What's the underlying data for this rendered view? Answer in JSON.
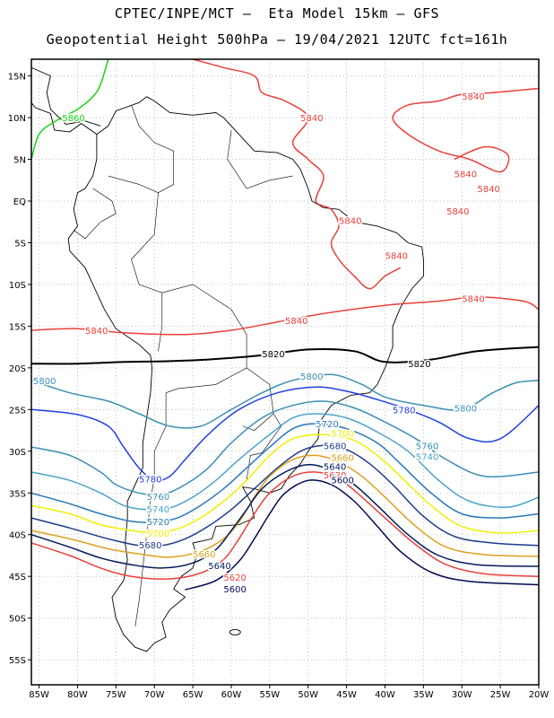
{
  "header": {
    "line1": "CPTEC/INPE/MCT –  Eta Model 15km – GFS",
    "line2": "Geopotential Height 500hPa – 19/04/2021 12UTC fct=161h"
  },
  "axes": {
    "lat_labels": [
      "15N",
      "10N",
      "5N",
      "EQ",
      "5S",
      "10S",
      "15S",
      "20S",
      "25S",
      "30S",
      "35S",
      "40S",
      "45S",
      "50S",
      "55S"
    ],
    "lon_labels": [
      "85W",
      "80W",
      "75W",
      "70W",
      "65W",
      "60W",
      "55W",
      "50W",
      "45W",
      "40W",
      "35W",
      "30W",
      "25W",
      "20W"
    ],
    "lat_range": [
      -58,
      17
    ],
    "lon_range": [
      -86,
      -20
    ]
  },
  "contours": [
    {
      "value": 5860,
      "label": "5860",
      "color": "#19d219",
      "points": [
        [
          -86,
          5
        ],
        [
          -85,
          8
        ],
        [
          -83,
          9.5
        ],
        [
          -80,
          11
        ],
        [
          -78,
          12.5
        ],
        [
          -77,
          14
        ],
        [
          -76,
          17
        ]
      ],
      "labels_at": [
        [
          -82,
          10
        ]
      ]
    },
    {
      "value": 5840,
      "label": "5840",
      "color": "#e8403a",
      "points": [
        [
          -86,
          -15.5
        ],
        [
          -80,
          -15.3
        ],
        [
          -74,
          -15.8
        ],
        [
          -66,
          -16
        ],
        [
          -60,
          -15.5
        ],
        [
          -54,
          -14.5
        ],
        [
          -48,
          -13.5
        ],
        [
          -40,
          -12.5
        ],
        [
          -33,
          -12
        ],
        [
          -28,
          -11.5
        ],
        [
          -22,
          -12
        ],
        [
          -20,
          -13
        ]
      ],
      "labels_at": [
        [
          -79,
          -15.5
        ],
        [
          -53,
          -14.3
        ],
        [
          -30,
          -11.7
        ]
      ]
    },
    {
      "value": 5840,
      "label": "5840",
      "color": "#e8403a",
      "points": [
        [
          -65,
          17
        ],
        [
          -61,
          16
        ],
        [
          -57,
          15
        ],
        [
          -56,
          13
        ],
        [
          -53,
          12
        ],
        [
          -50,
          10
        ],
        [
          -52,
          7
        ],
        [
          -50,
          5
        ],
        [
          -48,
          3
        ],
        [
          -49,
          0
        ],
        [
          -47,
          -1
        ],
        [
          -46,
          -3
        ],
        [
          -47,
          -5
        ],
        [
          -46,
          -7
        ],
        [
          -44,
          -9
        ],
        [
          -42,
          -10.5
        ],
        [
          -40,
          -9
        ],
        [
          -38,
          -8
        ]
      ],
      "labels_at": [
        [
          -51,
          10
        ],
        [
          -46,
          -2.3
        ],
        [
          -40,
          -6.5
        ]
      ]
    },
    {
      "value": 5840,
      "label": "5840",
      "color": "#e8403a",
      "points": [
        [
          -20,
          13.5
        ],
        [
          -26,
          13
        ],
        [
          -30,
          12.8
        ],
        [
          -33,
          12
        ],
        [
          -37,
          11.5
        ],
        [
          -39,
          10
        ],
        [
          -37,
          8
        ],
        [
          -33,
          6
        ],
        [
          -29,
          5
        ],
        [
          -25,
          3.5
        ],
        [
          -24,
          5.5
        ],
        [
          -27,
          6.5
        ],
        [
          -31,
          5
        ]
      ],
      "labels_at": [
        [
          -30,
          12.6
        ],
        [
          -31,
          3.3
        ],
        [
          -28,
          1.5
        ],
        [
          -32,
          -1.2
        ]
      ]
    },
    {
      "value": 5820,
      "label": "5820",
      "color": "#000000",
      "points": [
        [
          -86,
          -19.5
        ],
        [
          -80,
          -19.5
        ],
        [
          -74,
          -19.3
        ],
        [
          -68,
          -19.2
        ],
        [
          -63,
          -19
        ],
        [
          -56,
          -18.5
        ],
        [
          -50,
          -17.8
        ],
        [
          -44,
          -18
        ],
        [
          -40,
          -19.3
        ],
        [
          -34,
          -19
        ],
        [
          -28,
          -18
        ],
        [
          -20,
          -17.5
        ]
      ],
      "labels_at": [
        [
          -56,
          -18.3
        ],
        [
          -37,
          -19.5
        ]
      ]
    },
    {
      "value": 5800,
      "label": "5800",
      "color": "#3a8fb5",
      "points": [
        [
          -86,
          -21.5
        ],
        [
          -81,
          -23
        ],
        [
          -76,
          -24
        ],
        [
          -72,
          -25.5
        ],
        [
          -68,
          -27
        ],
        [
          -64,
          -27
        ],
        [
          -60,
          -25
        ],
        [
          -56,
          -23
        ],
        [
          -52,
          -21.5
        ],
        [
          -47,
          -20.8
        ],
        [
          -43,
          -22
        ],
        [
          -40,
          -23.5
        ],
        [
          -35,
          -24.5
        ],
        [
          -30,
          -25
        ],
        [
          -26,
          -23
        ],
        [
          -23,
          -21.8
        ],
        [
          -20,
          -21.5
        ]
      ],
      "labels_at": [
        [
          -86,
          -21.5
        ],
        [
          -51,
          -21
        ],
        [
          -31,
          -24.8
        ]
      ]
    },
    {
      "value": 5780,
      "label": "5780",
      "color": "#2040e0",
      "points": [
        [
          -86,
          -25
        ],
        [
          -80,
          -25.6
        ],
        [
          -76,
          -27
        ],
        [
          -74,
          -29.5
        ],
        [
          -72,
          -32
        ],
        [
          -70,
          -33.5
        ],
        [
          -68,
          -33
        ],
        [
          -66,
          -31
        ],
        [
          -63,
          -28
        ],
        [
          -59,
          -25
        ],
        [
          -54,
          -23
        ],
        [
          -49,
          -22.3
        ],
        [
          -45,
          -22.8
        ],
        [
          -41,
          -23.8
        ],
        [
          -37,
          -25
        ],
        [
          -33,
          -26.5
        ],
        [
          -29,
          -28.5
        ],
        [
          -25,
          -28.5
        ],
        [
          -20,
          -24.5
        ]
      ],
      "labels_at": [
        [
          -72,
          -33.3
        ],
        [
          -39,
          -25
        ]
      ]
    },
    {
      "value": 5760,
      "label": "5760",
      "color": "#3a8fb5",
      "points": [
        [
          -86,
          -29.5
        ],
        [
          -81,
          -30.5
        ],
        [
          -77,
          -32.5
        ],
        [
          -75,
          -34
        ],
        [
          -72,
          -35
        ],
        [
          -69,
          -35.2
        ],
        [
          -66,
          -34
        ],
        [
          -63,
          -32
        ],
        [
          -60,
          -29
        ],
        [
          -56,
          -26
        ],
        [
          -52,
          -24.5
        ],
        [
          -48,
          -24
        ],
        [
          -44,
          -24.8
        ],
        [
          -40,
          -26.5
        ],
        [
          -36,
          -28.5
        ],
        [
          -32,
          -31
        ],
        [
          -27,
          -33
        ],
        [
          -20,
          -32.5
        ]
      ],
      "labels_at": [
        [
          -71,
          -35.4
        ],
        [
          -36,
          -29.3
        ]
      ]
    },
    {
      "value": 5740,
      "label": "5740",
      "color": "#4aa3c8",
      "points": [
        [
          -86,
          -32.5
        ],
        [
          -81,
          -33.5
        ],
        [
          -77,
          -35
        ],
        [
          -74,
          -36.5
        ],
        [
          -71,
          -37
        ],
        [
          -68,
          -36.8
        ],
        [
          -65,
          -35.5
        ],
        [
          -62,
          -33.5
        ],
        [
          -59,
          -31
        ],
        [
          -55,
          -28
        ],
        [
          -52,
          -26
        ],
        [
          -49,
          -25.5
        ],
        [
          -45,
          -26
        ],
        [
          -41,
          -27.7
        ],
        [
          -37,
          -30
        ],
        [
          -33,
          -33.5
        ],
        [
          -29,
          -36
        ],
        [
          -24,
          -36.7
        ],
        [
          -20,
          -35.5
        ]
      ],
      "labels_at": [
        [
          -71,
          -36.9
        ],
        [
          -36,
          -30.6
        ]
      ]
    },
    {
      "value": 5720,
      "label": "5720",
      "color": "#2878b8",
      "points": [
        [
          -86,
          -35
        ],
        [
          -81,
          -36.3
        ],
        [
          -77,
          -37.5
        ],
        [
          -73,
          -38.4
        ],
        [
          -70,
          -38.5
        ],
        [
          -67,
          -38
        ],
        [
          -64,
          -36.5
        ],
        [
          -61,
          -34.5
        ],
        [
          -58,
          -32
        ],
        [
          -55,
          -29.5
        ],
        [
          -52,
          -27.3
        ],
        [
          -49,
          -26.7
        ],
        [
          -45,
          -27.3
        ],
        [
          -41,
          -29
        ],
        [
          -38,
          -31.5
        ],
        [
          -34,
          -35
        ],
        [
          -30,
          -37.5
        ],
        [
          -25,
          -38
        ],
        [
          -20,
          -37.5
        ]
      ],
      "labels_at": [
        [
          -71,
          -38.4
        ],
        [
          -49,
          -26.7
        ]
      ]
    },
    {
      "value": 5700,
      "label": "5700",
      "color": "#f0f000",
      "points": [
        [
          -86,
          -36.5
        ],
        [
          -81,
          -37.5
        ],
        [
          -77,
          -38.8
        ],
        [
          -73,
          -39.5
        ],
        [
          -70,
          -39.8
        ],
        [
          -67,
          -39.3
        ],
        [
          -64,
          -38
        ],
        [
          -61,
          -36
        ],
        [
          -58,
          -33.5
        ],
        [
          -55,
          -30.5
        ],
        [
          -52,
          -28.5
        ],
        [
          -48,
          -28
        ],
        [
          -44,
          -28.7
        ],
        [
          -41,
          -30.5
        ],
        [
          -38,
          -33
        ],
        [
          -34,
          -36.5
        ],
        [
          -30,
          -39
        ],
        [
          -25,
          -39.8
        ],
        [
          -20,
          -39.5
        ]
      ],
      "labels_at": [
        [
          -71,
          -39.8
        ],
        [
          -47,
          -27.8
        ]
      ]
    },
    {
      "value": 5680,
      "label": "5680",
      "color": "#1e3c8c",
      "points": [
        [
          -86,
          -38
        ],
        [
          -81,
          -39.2
        ],
        [
          -76,
          -40.5
        ],
        [
          -72,
          -41.3
        ],
        [
          -69,
          -41.3
        ],
        [
          -66,
          -40.5
        ],
        [
          -63,
          -39
        ],
        [
          -60,
          -37
        ],
        [
          -57,
          -34.5
        ],
        [
          -54,
          -32
        ],
        [
          -51,
          -30
        ],
        [
          -48,
          -29.3
        ],
        [
          -45,
          -29.8
        ],
        [
          -42,
          -31.5
        ],
        [
          -39,
          -34
        ],
        [
          -35,
          -37.8
        ],
        [
          -31,
          -40.2
        ],
        [
          -26,
          -41
        ],
        [
          -20,
          -41.3
        ]
      ],
      "labels_at": [
        [
          -72,
          -41.2
        ],
        [
          -48,
          -29.3
        ]
      ]
    },
    {
      "value": 5660,
      "label": "5660",
      "color": "#e0a020",
      "points": [
        [
          -86,
          -39.5
        ],
        [
          -81,
          -40.5
        ],
        [
          -76,
          -41.7
        ],
        [
          -72,
          -42.3
        ],
        [
          -68,
          -42.7
        ],
        [
          -64,
          -42
        ],
        [
          -61,
          -40.5
        ],
        [
          -59,
          -38.5
        ],
        [
          -57,
          -35.5
        ],
        [
          -55,
          -33
        ],
        [
          -52,
          -31
        ],
        [
          -49,
          -30.5
        ],
        [
          -46,
          -31.3
        ],
        [
          -43,
          -33
        ],
        [
          -40,
          -35.5
        ],
        [
          -36,
          -39
        ],
        [
          -32,
          -41.5
        ],
        [
          -27,
          -42.4
        ],
        [
          -20,
          -42.6
        ]
      ],
      "labels_at": [
        [
          -65,
          -42.3
        ],
        [
          -47,
          -30.7
        ]
      ]
    },
    {
      "value": 5640,
      "label": "5640",
      "color": "#001a5a",
      "points": [
        [
          -86,
          -40
        ],
        [
          -81,
          -41.5
        ],
        [
          -77,
          -42.8
        ],
        [
          -73,
          -43.6
        ],
        [
          -69,
          -44
        ],
        [
          -65,
          -43.4
        ],
        [
          -62,
          -41.8
        ],
        [
          -60,
          -39.5
        ],
        [
          -58,
          -37
        ],
        [
          -56,
          -34.5
        ],
        [
          -53,
          -32.5
        ],
        [
          -50,
          -31.6
        ],
        [
          -47,
          -32.3
        ],
        [
          -44,
          -34
        ],
        [
          -41,
          -36.5
        ],
        [
          -37,
          -40
        ],
        [
          -33,
          -42.5
        ],
        [
          -28,
          -43.6
        ],
        [
          -20,
          -43.8
        ]
      ],
      "labels_at": [
        [
          -63,
          -43.7
        ],
        [
          -48,
          -31.8
        ]
      ]
    },
    {
      "value": 5620,
      "label": "5620",
      "color": "#e8403a",
      "points": [
        [
          -86,
          -41
        ],
        [
          -81,
          -42.5
        ],
        [
          -77,
          -44
        ],
        [
          -73,
          -45
        ],
        [
          -68,
          -45.3
        ],
        [
          -64,
          -44.6
        ],
        [
          -61,
          -43
        ],
        [
          -59,
          -40.5
        ],
        [
          -57,
          -37.5
        ],
        [
          -55,
          -35
        ],
        [
          -52,
          -33
        ],
        [
          -49,
          -32.5
        ],
        [
          -46,
          -33.3
        ],
        [
          -43,
          -35.5
        ],
        [
          -40,
          -38
        ],
        [
          -36,
          -41.2
        ],
        [
          -32,
          -43.6
        ],
        [
          -27,
          -44.7
        ],
        [
          -20,
          -45
        ]
      ],
      "labels_at": [
        [
          -61,
          -45.1
        ],
        [
          -48,
          -32.8
        ]
      ]
    },
    {
      "value": 5600,
      "label": "5600",
      "color": "#000a50",
      "points": [
        [
          -66,
          -46.6
        ],
        [
          -62,
          -45.5
        ],
        [
          -59,
          -43.2
        ],
        [
          -57,
          -40.5
        ],
        [
          -55,
          -37.5
        ],
        [
          -53,
          -35
        ],
        [
          -50,
          -33.5
        ],
        [
          -47,
          -34
        ],
        [
          -44,
          -36
        ],
        [
          -41,
          -39
        ],
        [
          -38,
          -42
        ],
        [
          -34,
          -44.5
        ],
        [
          -29,
          -45.6
        ],
        [
          -20,
          -46
        ]
      ],
      "labels_at": [
        [
          -61,
          -46.5
        ],
        [
          -47,
          -33.4
        ]
      ]
    }
  ]
}
